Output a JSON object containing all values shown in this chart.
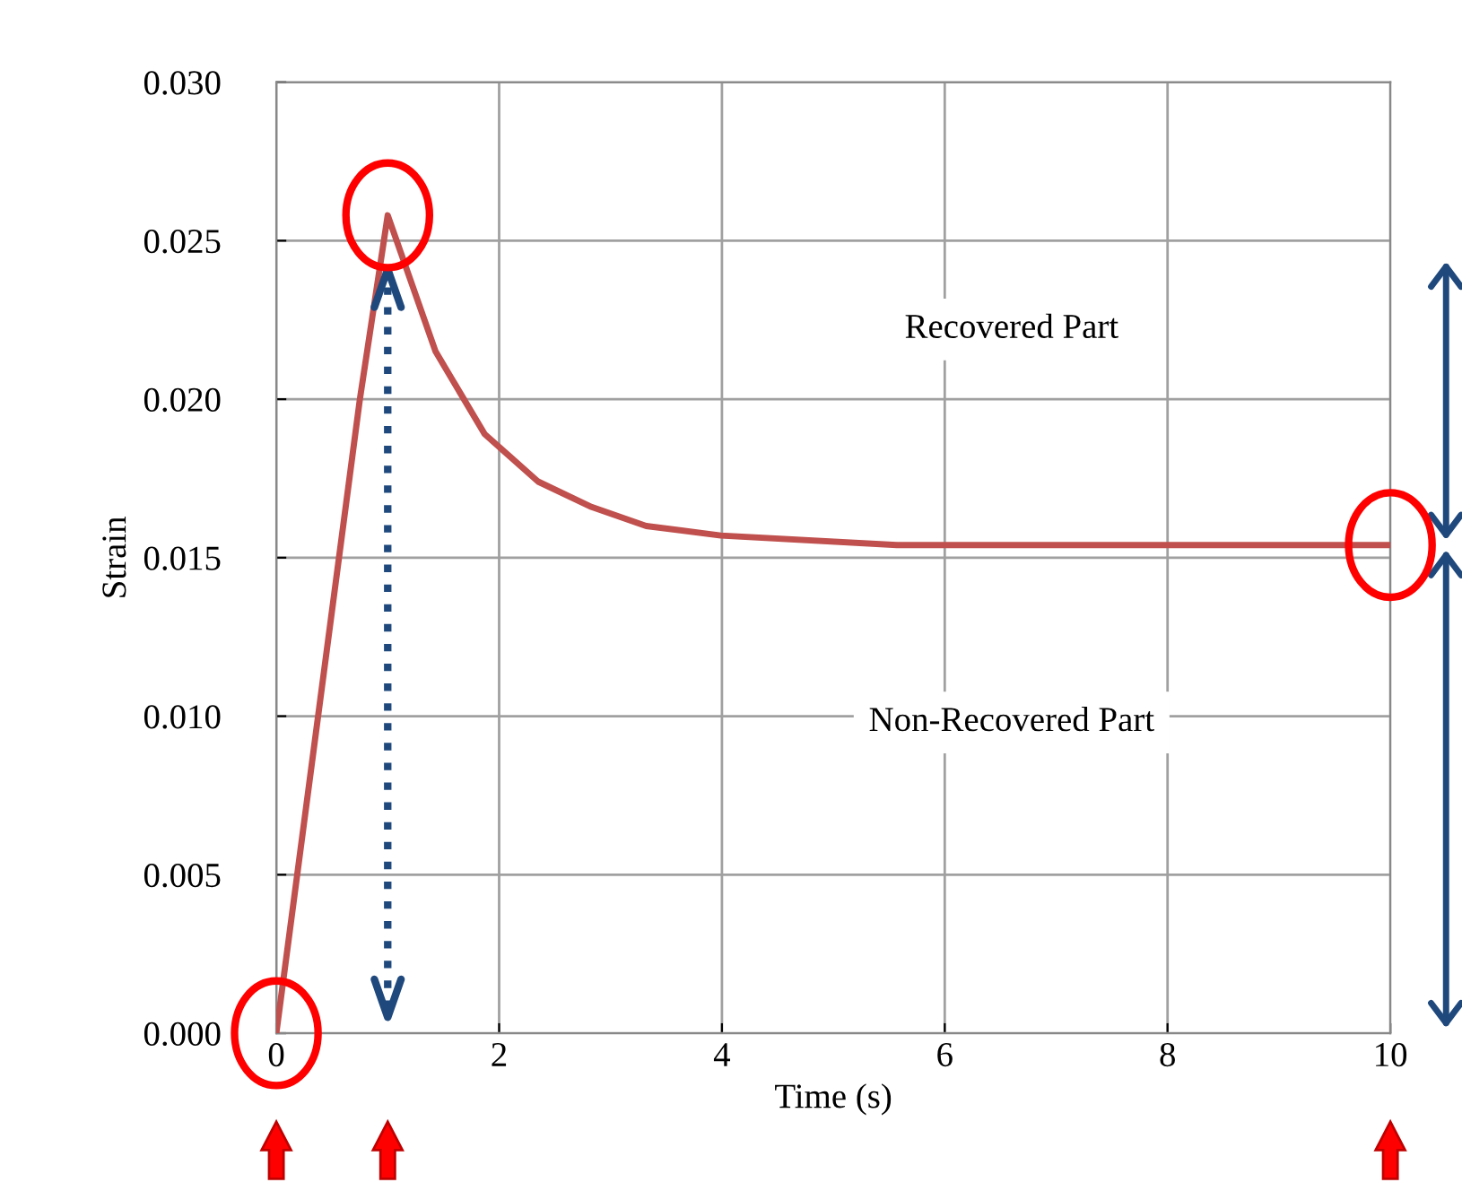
{
  "chart_data": {
    "type": "line",
    "xlabel": "Time (s)",
    "ylabel": "Strain",
    "series": [
      {
        "color": "#c0504d",
        "x": [
          0,
          0.75,
          1,
          1.43,
          1.87,
          2.35,
          2.83,
          3.32,
          3.99,
          5.57,
          10
        ],
        "values": [
          0,
          0.02,
          0.0258,
          0.0215,
          0.0189,
          0.0174,
          0.0166,
          0.016,
          0.0157,
          0.0154,
          0.0154
        ]
      }
    ],
    "xlim": [
      0,
      10
    ],
    "xticks": [
      0,
      2,
      4,
      6,
      8,
      10
    ],
    "ylim": [
      0,
      0.03
    ],
    "yticks": [
      {
        "value": 0,
        "label": "0.000"
      },
      {
        "value": 0.005,
        "label": "0.005"
      },
      {
        "value": 0.01,
        "label": "0.010"
      },
      {
        "value": 0.015,
        "label": "0.015"
      },
      {
        "value": 0.02,
        "label": "0.020"
      },
      {
        "value": 0.025,
        "label": "0.025"
      },
      {
        "value": 0.03,
        "label": "0.030"
      }
    ],
    "ref_lines": [
      {
        "axis": "x",
        "value": 1,
        "color": "#1f497d",
        "line_style": "dotted"
      }
    ],
    "grid": true,
    "marker": "none",
    "line_style": "solid",
    "annotations": [
      "Recovered Part",
      "Non-Recovered Part"
    ]
  }
}
